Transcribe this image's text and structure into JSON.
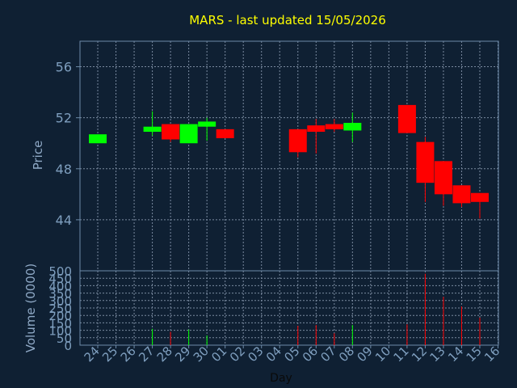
{
  "chart_data": {
    "type": "candlestick",
    "title": "MARS - last updated 15/05/2026",
    "xlabel": "Day",
    "price_panel": {
      "ylabel": "Price",
      "ylim": [
        40,
        58
      ],
      "yticks": [
        44,
        48,
        52,
        56
      ]
    },
    "volume_panel": {
      "ylabel": "Volume (0000)",
      "ylim": [
        0,
        500
      ],
      "yticks": [
        0,
        50,
        100,
        150,
        200,
        250,
        300,
        350,
        400,
        450,
        500
      ]
    },
    "day_labels": [
      "24",
      "25",
      "26",
      "27",
      "28",
      "29",
      "30",
      "01",
      "02",
      "03",
      "04",
      "05",
      "06",
      "07",
      "08",
      "09",
      "10",
      "11",
      "12",
      "13",
      "14",
      "15",
      "16"
    ],
    "candles": [
      {
        "day": "24",
        "open": 50.0,
        "close": 50.7,
        "high": 50.7,
        "low": 50.0,
        "volume": 0
      },
      {
        "day": "27",
        "open": 50.9,
        "close": 51.3,
        "high": 52.5,
        "low": 50.6,
        "volume": 110
      },
      {
        "day": "28",
        "open": 51.5,
        "close": 50.3,
        "high": 51.5,
        "low": 50.1,
        "volume": 90
      },
      {
        "day": "29",
        "open": 50.0,
        "close": 51.5,
        "high": 51.5,
        "low": 50.0,
        "volume": 105
      },
      {
        "day": "30",
        "open": 51.3,
        "close": 51.7,
        "high": 52.0,
        "low": 50.2,
        "volume": 65
      },
      {
        "day": "01",
        "open": 51.1,
        "close": 50.4,
        "high": 51.1,
        "low": 50.4,
        "volume": 0
      },
      {
        "day": "05",
        "open": 51.1,
        "close": 49.3,
        "high": 51.1,
        "low": 48.9,
        "volume": 130
      },
      {
        "day": "06",
        "open": 51.4,
        "close": 50.9,
        "high": 51.9,
        "low": 49.2,
        "volume": 135
      },
      {
        "day": "07",
        "open": 51.5,
        "close": 51.1,
        "high": 51.9,
        "low": 50.9,
        "volume": 80
      },
      {
        "day": "08",
        "open": 51.0,
        "close": 51.6,
        "high": 52.4,
        "low": 50.1,
        "volume": 135
      },
      {
        "day": "11",
        "open": 53.0,
        "close": 50.8,
        "high": 53.0,
        "low": 50.8,
        "volume": 140
      },
      {
        "day": "12",
        "open": 50.1,
        "close": 46.9,
        "high": 50.5,
        "low": 45.4,
        "volume": 480
      },
      {
        "day": "13",
        "open": 48.6,
        "close": 46.0,
        "high": 48.6,
        "low": 45.1,
        "volume": 325
      },
      {
        "day": "14",
        "open": 46.7,
        "close": 45.3,
        "high": 46.7,
        "low": 45.0,
        "volume": 260
      },
      {
        "day": "15",
        "open": 46.1,
        "close": 45.4,
        "high": 46.1,
        "low": 44.1,
        "volume": 185
      }
    ],
    "grid": true,
    "colors": {
      "background": "#0f2033",
      "title": "#ffff00",
      "axis_text": "#7f9fbf",
      "axis_label": "#8fa9c6",
      "frame": "#6c8aa8",
      "grid": "#7a8aa0",
      "up": "#00ff00",
      "down": "#ff0000"
    }
  }
}
